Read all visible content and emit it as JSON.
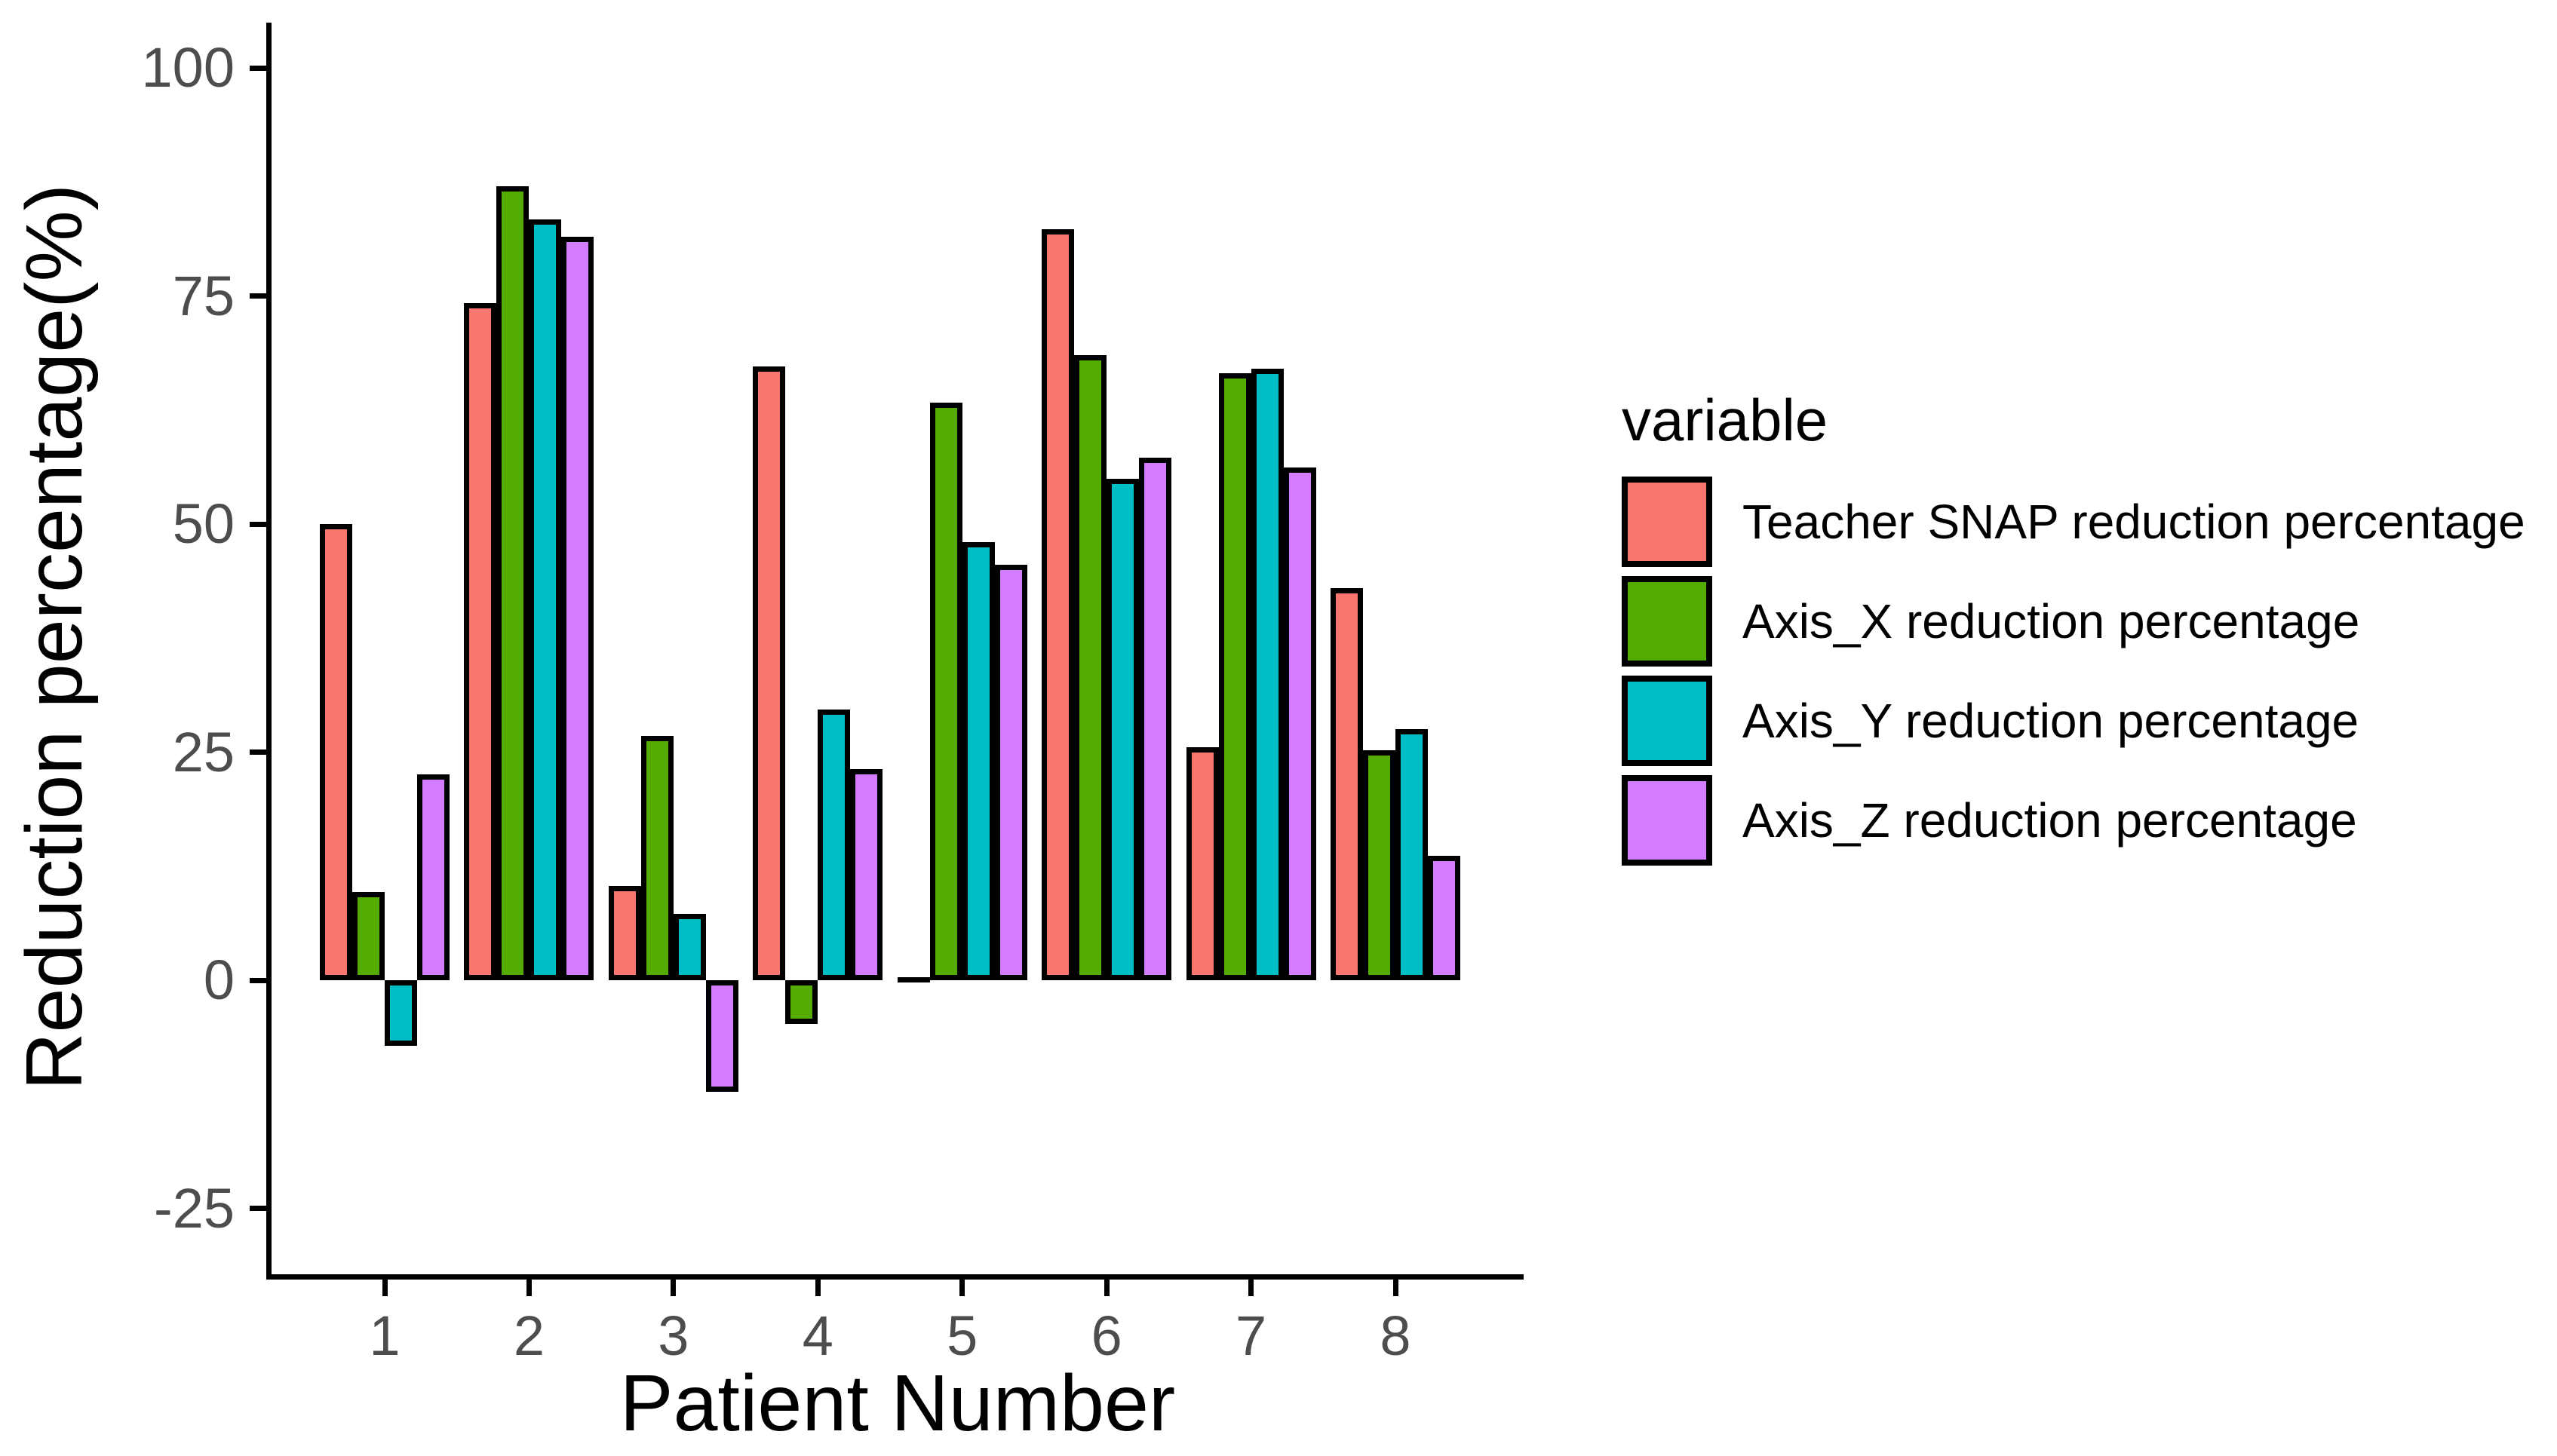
{
  "figure": {
    "background_color": "#ffffff"
  },
  "chart_data": {
    "type": "bar",
    "title": "",
    "xlabel": "Patient Number",
    "ylabel": "Reduction percentage(%)",
    "categories": [
      "1",
      "2",
      "3",
      "4",
      "5",
      "6",
      "7",
      "8"
    ],
    "series": [
      {
        "name": "Teacher SNAP reduction percentage",
        "color": "#F8766D",
        "values": [
          50.0,
          74.2,
          10.3,
          67.3,
          0.0,
          82.3,
          25.5,
          43.0
        ]
      },
      {
        "name": "Axis_X reduction percentage",
        "color": "#54AB01",
        "values": [
          9.7,
          87.0,
          26.8,
          -4.8,
          63.3,
          68.5,
          66.5,
          25.2
        ]
      },
      {
        "name": "Axis_Y reduction percentage",
        "color": "#00BEC6",
        "values": [
          -7.2,
          83.4,
          7.3,
          29.7,
          48.0,
          55.0,
          67.0,
          27.5
        ]
      },
      {
        "name": "Axis_Z reduction percentage",
        "color": "#D47CFF",
        "values": [
          22.6,
          81.5,
          -12.2,
          23.1,
          45.5,
          57.3,
          56.2,
          13.6
        ]
      }
    ],
    "yticks": [
      100,
      75,
      50,
      25,
      0,
      -25
    ],
    "ylim": [
      -33,
      106
    ],
    "grid": false,
    "legend_position": "right",
    "bar_outline_color": "#000000",
    "axis_tick_text_color": "#4d4d4d",
    "axis_title_color": "#000000"
  },
  "legend": {
    "title": "variable",
    "entries": [
      {
        "label": "Teacher SNAP reduction percentage",
        "color": "#F8766D"
      },
      {
        "label": "Axis_X reduction percentage",
        "color": "#54AB01"
      },
      {
        "label": "Axis_Y reduction percentage",
        "color": "#00BEC6"
      },
      {
        "label": "Axis_Z reduction percentage",
        "color": "#D47CFF"
      }
    ]
  }
}
